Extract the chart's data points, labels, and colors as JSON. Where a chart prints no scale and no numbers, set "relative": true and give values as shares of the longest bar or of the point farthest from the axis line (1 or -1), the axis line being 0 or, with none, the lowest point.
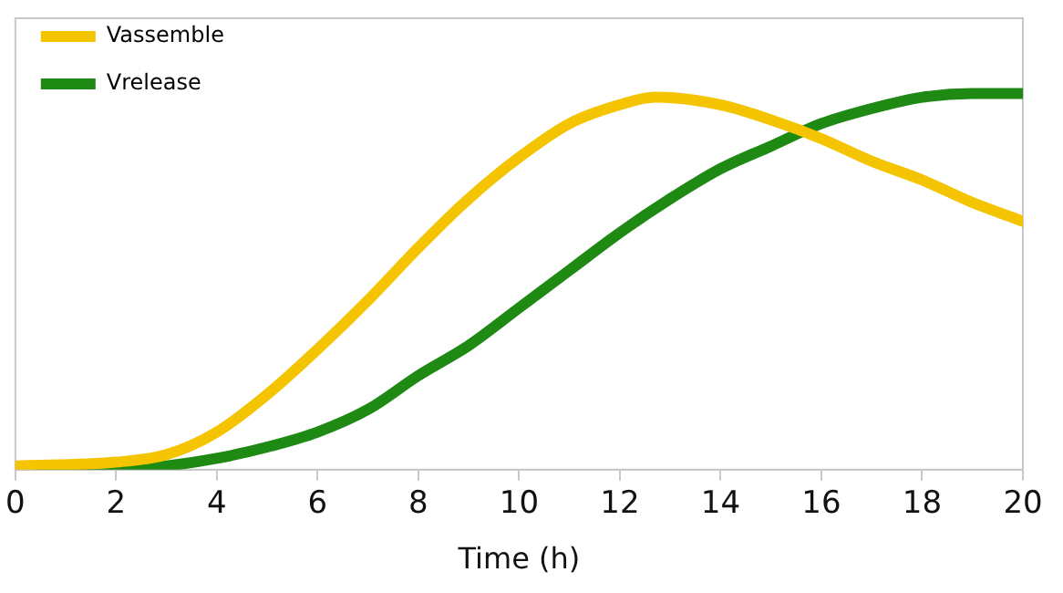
{
  "chart_data": {
    "type": "line",
    "xlabel": "Time (h)",
    "relative": true,
    "xlim": [
      0,
      20
    ],
    "xticks": [
      0,
      2,
      4,
      6,
      8,
      10,
      12,
      14,
      16,
      18,
      20
    ],
    "grid": false,
    "legend": "top left",
    "marker": "none",
    "line_style": "solid",
    "series": [
      {
        "name": "Vassemble",
        "color": "#f5c400",
        "x": [
          0,
          2,
          3,
          4,
          5,
          6,
          7,
          8,
          9,
          10,
          11,
          12,
          12.7,
          14,
          15,
          16,
          17,
          18,
          19,
          20
        ],
        "values": [
          0.01,
          0.02,
          0.04,
          0.1,
          0.2,
          0.32,
          0.45,
          0.59,
          0.72,
          0.83,
          0.92,
          0.97,
          0.99,
          0.97,
          0.93,
          0.88,
          0.82,
          0.77,
          0.71,
          0.66
        ]
      },
      {
        "name": "Vrelease",
        "color": "#1e8a14",
        "x": [
          0.5,
          2,
          3,
          4,
          5,
          6,
          7,
          8,
          9,
          10,
          11,
          12,
          13,
          14,
          15,
          16,
          17,
          18,
          19,
          20
        ],
        "values": [
          0,
          0,
          0.01,
          0.03,
          0.06,
          0.1,
          0.16,
          0.25,
          0.33,
          0.43,
          0.53,
          0.63,
          0.72,
          0.8,
          0.86,
          0.92,
          0.96,
          0.99,
          1,
          1
        ]
      }
    ]
  }
}
